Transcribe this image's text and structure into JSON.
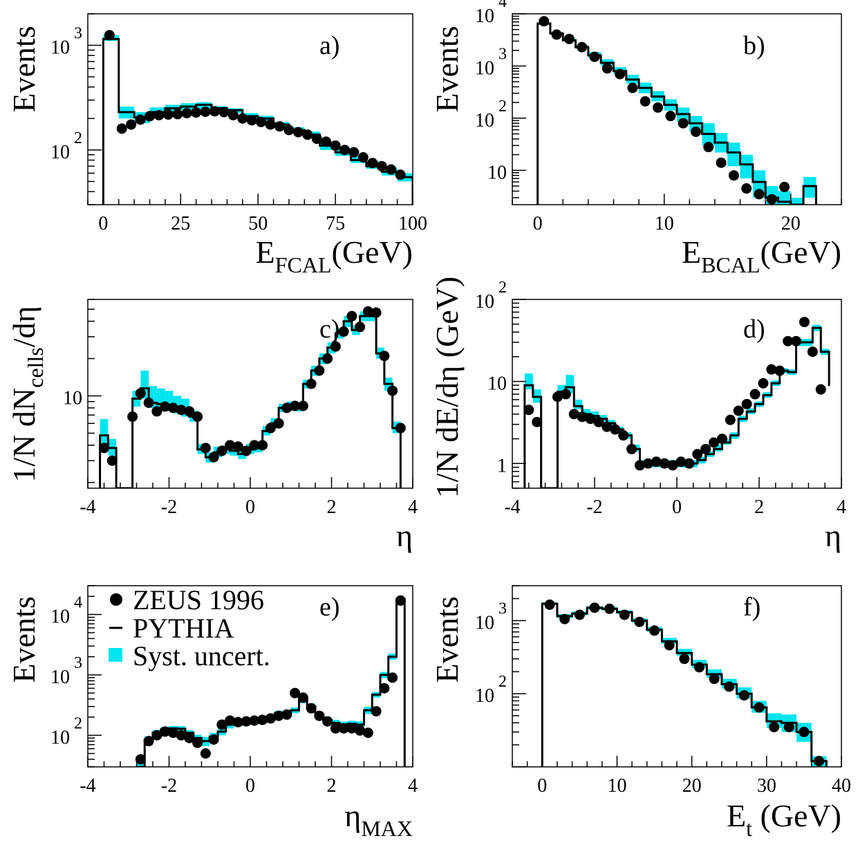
{
  "colors": {
    "band": "#00e5ee",
    "line": "#000000",
    "data": "#000000"
  },
  "chart_data": [
    {
      "type": "step",
      "label": "a)",
      "xlabel": "E",
      "xlabel_sub": "FCAL",
      "xlabel_suffix": "(GeV)",
      "ylabel": "Events",
      "xlim": [
        -5,
        100
      ],
      "ylim": [
        30,
        2000
      ],
      "ylog": true,
      "xticks": [
        0,
        25,
        50,
        75,
        100
      ],
      "yticks": [
        {
          "value": 100,
          "base": "10",
          "exp": "2"
        },
        {
          "value": 1000,
          "base": "10",
          "exp": "3"
        }
      ],
      "edges": [
        0,
        5,
        10,
        15,
        20,
        25,
        30,
        35,
        40,
        45,
        50,
        55,
        60,
        65,
        70,
        75,
        80,
        85,
        90,
        95,
        100
      ],
      "pythia": [
        1150,
        230,
        205,
        230,
        250,
        260,
        270,
        250,
        240,
        210,
        200,
        175,
        155,
        140,
        110,
        95,
        80,
        70,
        62,
        55
      ],
      "band_lo": [
        1100,
        200,
        180,
        210,
        230,
        240,
        245,
        240,
        225,
        200,
        188,
        165,
        145,
        130,
        100,
        88,
        75,
        66,
        57,
        50
      ],
      "band_hi": [
        1250,
        260,
        230,
        255,
        270,
        280,
        285,
        262,
        250,
        225,
        212,
        185,
        165,
        150,
        120,
        105,
        88,
        78,
        68,
        60
      ],
      "points_x": [
        2,
        6,
        9,
        12,
        15,
        18,
        21,
        24,
        27,
        30,
        33,
        36,
        39,
        42,
        45,
        48,
        51,
        54,
        57,
        60,
        63,
        66,
        69,
        72,
        75,
        78,
        81,
        84,
        87,
        90,
        93,
        96
      ],
      "points_y": [
        1250,
        160,
        175,
        195,
        210,
        215,
        218,
        220,
        225,
        228,
        232,
        234,
        230,
        215,
        200,
        192,
        185,
        175,
        168,
        155,
        148,
        140,
        128,
        120,
        110,
        100,
        95,
        85,
        75,
        70,
        65,
        58
      ]
    },
    {
      "type": "step",
      "label": "b)",
      "xlabel": "E",
      "xlabel_sub": "BCAL",
      "xlabel_suffix": "(GeV)",
      "ylabel": "Events",
      "xlim": [
        -2,
        24
      ],
      "ylim": [
        2.2,
        10000
      ],
      "ylog": true,
      "xticks": [
        0,
        10,
        20
      ],
      "yticks": [
        {
          "value": 10,
          "base": "10",
          "exp": ""
        },
        {
          "value": 100,
          "base": "10",
          "exp": "2"
        },
        {
          "value": 1000,
          "base": "10",
          "exp": "3"
        },
        {
          "value": 10000,
          "base": "10",
          "exp": "4"
        }
      ],
      "edges": [
        0,
        1,
        2,
        3,
        4,
        5,
        6,
        7,
        8,
        9,
        10,
        11,
        12,
        13,
        14,
        15,
        16,
        17,
        18,
        19,
        20,
        21,
        22
      ],
      "pythia": [
        6500,
        4200,
        3100,
        2300,
        1600,
        1150,
        800,
        550,
        380,
        260,
        180,
        120,
        80,
        50,
        34,
        22,
        13,
        6,
        3,
        2.5,
        1.8,
        5
      ],
      "band_lo": [
        6200,
        4000,
        2950,
        2150,
        1450,
        1000,
        700,
        460,
        300,
        210,
        140,
        85,
        55,
        30,
        22,
        12,
        7,
        3,
        1.5,
        1,
        1,
        3
      ],
      "band_hi": [
        6900,
        4500,
        3350,
        2500,
        1850,
        1350,
        950,
        680,
        480,
        330,
        230,
        160,
        110,
        80,
        52,
        34,
        20,
        10,
        5,
        4,
        3,
        7.5
      ],
      "points_x": [
        0.5,
        1.5,
        2.5,
        3.5,
        4.5,
        5.5,
        6.5,
        7.5,
        8.5,
        9.5,
        10.5,
        11.5,
        12.5,
        13.5,
        14.5,
        15.5,
        16.5,
        17.5,
        18.5,
        19.5
      ],
      "points_y": [
        7200,
        4000,
        3300,
        2300,
        1500,
        900,
        700,
        380,
        210,
        160,
        110,
        80,
        55,
        28,
        14,
        8,
        4.5,
        3.5,
        2.8,
        4.8
      ]
    },
    {
      "type": "step",
      "label": "c)",
      "xlabel": "η",
      "xlabel_sub": "",
      "xlabel_suffix": "",
      "ylabel": "1/N dN",
      "ylabel_sub": "cells",
      "ylabel_suffix": "/dη",
      "xlim": [
        -4,
        4
      ],
      "ylim": [
        1.8,
        60
      ],
      "ylog": true,
      "xticks": [
        -4,
        -2,
        0,
        2,
        4
      ],
      "yticks": [
        {
          "value": 10,
          "base": "10",
          "exp": ""
        }
      ],
      "edges": [
        -3.7,
        -3.5,
        -3.3,
        -3.1,
        -3.0,
        -2.9,
        -2.7,
        -2.5,
        -2.3,
        -2.1,
        -1.9,
        -1.7,
        -1.5,
        -1.3,
        -1.1,
        -0.9,
        -0.7,
        -0.5,
        -0.3,
        -0.1,
        0.1,
        0.3,
        0.5,
        0.7,
        0.9,
        1.1,
        1.3,
        1.5,
        1.7,
        1.9,
        2.1,
        2.3,
        2.5,
        2.7,
        2.9,
        3.1,
        3.3,
        3.5,
        3.7
      ],
      "pythia": [
        4.8,
        3.8,
        0.1,
        0.1,
        0.1,
        9.5,
        11.5,
        8.8,
        8.6,
        8.4,
        7.8,
        7.5,
        6.8,
        3.7,
        3.2,
        3.5,
        3.7,
        3.6,
        3.4,
        3.7,
        3.8,
        5.2,
        6.0,
        8.0,
        8.3,
        8.2,
        12.5,
        16.0,
        20.0,
        24.5,
        32.0,
        40.0,
        34.0,
        44.0,
        44.0,
        22.0,
        12.5,
        5.5
      ],
      "band_lo": [
        4.0,
        3.3,
        0.1,
        0.1,
        0.1,
        8.2,
        9.5,
        8.0,
        7.8,
        7.6,
        7.2,
        6.8,
        6.2,
        3.4,
        2.9,
        3.2,
        3.4,
        3.3,
        3.1,
        3.4,
        3.5,
        4.8,
        5.5,
        7.4,
        7.6,
        7.5,
        11.5,
        14.5,
        18.0,
        22.0,
        29.0,
        36.0,
        31.0,
        40.0,
        40.0,
        20.0,
        11.0,
        5.0
      ],
      "band_hi": [
        6.5,
        4.5,
        0.1,
        0.1,
        0.1,
        11.0,
        16.0,
        12.0,
        11.5,
        11.0,
        10.0,
        9.5,
        7.6,
        4.1,
        3.5,
        3.9,
        4.0,
        3.9,
        3.8,
        4.1,
        4.2,
        5.7,
        6.6,
        8.6,
        9.0,
        8.9,
        13.5,
        17.5,
        22.0,
        27.0,
        35.0,
        44.0,
        37.0,
        48.0,
        48.0,
        24.5,
        14.0,
        6.2
      ],
      "points_x": [
        -3.6,
        -3.4,
        -2.9,
        -2.7,
        -2.5,
        -2.3,
        -2.1,
        -1.9,
        -1.7,
        -1.5,
        -1.3,
        -1.1,
        -0.9,
        -0.7,
        -0.5,
        -0.3,
        -0.1,
        0.1,
        0.3,
        0.5,
        0.7,
        0.9,
        1.1,
        1.3,
        1.5,
        1.7,
        1.9,
        2.1,
        2.3,
        2.5,
        2.7,
        2.9,
        3.1,
        3.3,
        3.5,
        3.7
      ],
      "points_y": [
        3.8,
        3.0,
        6.8,
        10.5,
        8.8,
        7.5,
        8.2,
        8.0,
        7.7,
        7.5,
        6.8,
        3.8,
        3.2,
        3.6,
        4.0,
        3.9,
        3.6,
        4.0,
        4.0,
        5.5,
        6.0,
        8.0,
        8.3,
        8.3,
        12.5,
        16.0,
        20.0,
        25.0,
        33.0,
        44.0,
        36.0,
        48.0,
        47.0,
        21.0,
        11.0,
        5.5
      ]
    },
    {
      "type": "step",
      "label": "d)",
      "xlabel": "η",
      "xlabel_sub": "",
      "xlabel_suffix": "",
      "ylabel": "1/N dE/dη (GeV)",
      "ylabel_sub": "",
      "ylabel_suffix": "",
      "xlim": [
        -4,
        4
      ],
      "ylim": [
        0.5,
        100
      ],
      "ylog": true,
      "xticks": [
        -4,
        -2,
        0,
        2,
        4
      ],
      "yticks": [
        {
          "value": 1,
          "base": "1",
          "exp": ""
        },
        {
          "value": 10,
          "base": "10",
          "exp": ""
        },
        {
          "value": 100,
          "base": "10",
          "exp": "2"
        }
      ],
      "edges": [
        -3.7,
        -3.5,
        -3.3,
        -3.1,
        -3.0,
        -2.9,
        -2.7,
        -2.5,
        -2.3,
        -2.1,
        -1.9,
        -1.7,
        -1.5,
        -1.3,
        -1.1,
        -0.9,
        -0.7,
        -0.5,
        -0.3,
        -0.1,
        0.1,
        0.3,
        0.5,
        0.7,
        0.9,
        1.1,
        1.3,
        1.5,
        1.7,
        1.9,
        2.1,
        2.3,
        2.5,
        2.7,
        2.9,
        3.1,
        3.3,
        3.5,
        3.7
      ],
      "pythia": [
        9.0,
        6.5,
        0.1,
        0.1,
        0.1,
        7.5,
        8.5,
        5.0,
        4.0,
        3.8,
        3.5,
        3.1,
        2.6,
        2.2,
        1.5,
        1.0,
        1.0,
        1.0,
        1.0,
        1.0,
        1.0,
        1.0,
        1.1,
        1.3,
        1.5,
        1.8,
        2.2,
        3.5,
        4.3,
        5.3,
        6.8,
        9.5,
        13.5,
        13.0,
        30.0,
        30.0,
        45.0,
        23.0,
        8.8
      ],
      "band_lo": [
        8.0,
        5.5,
        0.1,
        0.1,
        0.1,
        6.5,
        7.2,
        4.6,
        3.6,
        3.4,
        3.2,
        2.9,
        2.4,
        2.0,
        1.4,
        0.9,
        0.9,
        0.9,
        0.9,
        0.9,
        0.9,
        0.9,
        1.0,
        1.2,
        1.4,
        1.7,
        2.0,
        3.2,
        4.0,
        4.9,
        6.3,
        8.8,
        12.5,
        12.0,
        27.0,
        27.0,
        41.0,
        21.0,
        8.0
      ],
      "band_hi": [
        12.5,
        8.0,
        0.1,
        0.1,
        0.1,
        9.0,
        12.0,
        6.0,
        4.6,
        4.3,
        3.9,
        3.4,
        2.8,
        2.4,
        1.7,
        1.1,
        1.1,
        1.1,
        1.1,
        1.1,
        1.1,
        1.1,
        1.2,
        1.4,
        1.7,
        2.0,
        2.4,
        3.8,
        4.7,
        5.7,
        7.4,
        10.3,
        14.5,
        14.0,
        33.0,
        33.0,
        49.0,
        25.0,
        9.6
      ],
      "points_x": [
        -3.6,
        -3.4,
        -2.9,
        -2.7,
        -2.5,
        -2.3,
        -2.1,
        -1.9,
        -1.7,
        -1.5,
        -1.3,
        -1.1,
        -0.9,
        -0.7,
        -0.5,
        -0.3,
        -0.1,
        0.1,
        0.3,
        0.5,
        0.7,
        0.9,
        1.1,
        1.3,
        1.5,
        1.7,
        1.9,
        2.1,
        2.3,
        2.5,
        2.7,
        2.9,
        3.1,
        3.3,
        3.5,
        3.7
      ],
      "points_y": [
        4.5,
        3.2,
        6.5,
        7.0,
        4.0,
        3.7,
        3.5,
        3.2,
        2.8,
        2.6,
        2.2,
        1.5,
        0.95,
        1.0,
        1.05,
        1.0,
        0.95,
        1.05,
        1.0,
        1.3,
        1.5,
        1.8,
        2.0,
        3.4,
        4.4,
        5.3,
        7.0,
        9.5,
        14.0,
        13.5,
        31.0,
        31.0,
        53.0,
        23.0,
        8.0
      ]
    },
    {
      "type": "step",
      "label": "e)",
      "xlabel": "η",
      "xlabel_sub": "MAX",
      "xlabel_suffix": "",
      "ylabel": "Events",
      "xlim": [
        -4,
        4
      ],
      "ylim": [
        30,
        30000
      ],
      "ylog": true,
      "xticks": [
        -4,
        -2,
        0,
        2,
        4
      ],
      "yticks": [
        {
          "value": 100,
          "base": "10",
          "exp": "2"
        },
        {
          "value": 1000,
          "base": "10",
          "exp": "3"
        },
        {
          "value": 10000,
          "base": "10",
          "exp": "4"
        }
      ],
      "edges": [
        -2.8,
        -2.6,
        -2.4,
        -2.2,
        -2.0,
        -1.8,
        -1.6,
        -1.4,
        -1.2,
        -1.0,
        -0.8,
        -0.6,
        -0.4,
        -0.2,
        0.0,
        0.2,
        0.4,
        0.6,
        0.8,
        1.0,
        1.2,
        1.4,
        1.6,
        1.8,
        2.0,
        2.2,
        2.4,
        2.6,
        2.8,
        3.0,
        3.2,
        3.4,
        3.6,
        3.8
      ],
      "pythia": [
        30,
        85,
        110,
        125,
        130,
        128,
        110,
        90,
        80,
        95,
        115,
        150,
        160,
        165,
        170,
        175,
        195,
        230,
        230,
        260,
        380,
        300,
        220,
        180,
        160,
        150,
        155,
        150,
        260,
        470,
        1000,
        2000,
        18000
      ],
      "band_lo": [
        25,
        75,
        98,
        112,
        117,
        115,
        98,
        78,
        66,
        80,
        100,
        130,
        140,
        145,
        150,
        155,
        173,
        205,
        205,
        232,
        340,
        265,
        195,
        158,
        140,
        132,
        136,
        130,
        225,
        420,
        880,
        1780,
        16500
      ],
      "band_hi": [
        36,
        96,
        122,
        138,
        143,
        141,
        122,
        102,
        94,
        110,
        130,
        170,
        180,
        185,
        190,
        195,
        218,
        255,
        255,
        290,
        420,
        335,
        245,
        202,
        180,
        168,
        174,
        170,
        295,
        520,
        1120,
        2250,
        19500
      ],
      "points_x": [
        -2.7,
        -2.5,
        -2.3,
        -2.1,
        -1.9,
        -1.7,
        -1.5,
        -1.3,
        -1.1,
        -0.9,
        -0.7,
        -0.5,
        -0.3,
        -0.1,
        0.1,
        0.3,
        0.5,
        0.7,
        0.9,
        1.1,
        1.3,
        1.5,
        1.7,
        1.9,
        2.1,
        2.3,
        2.5,
        2.7,
        2.9,
        3.1,
        3.3,
        3.5,
        3.7
      ],
      "points_y": [
        40,
        80,
        100,
        115,
        110,
        100,
        90,
        75,
        50,
        85,
        150,
        175,
        165,
        170,
        175,
        180,
        190,
        210,
        220,
        500,
        420,
        280,
        210,
        170,
        130,
        130,
        130,
        120,
        110,
        250,
        600,
        900,
        17000
      ]
    },
    {
      "type": "step",
      "label": "f)",
      "xlabel": "E",
      "xlabel_sub": "t",
      "xlabel_suffix": " (GeV)",
      "ylabel": "Events",
      "xlim": [
        -4,
        40
      ],
      "ylim": [
        10,
        3000
      ],
      "ylog": true,
      "xticks": [
        0,
        10,
        20,
        30,
        40
      ],
      "yticks": [
        {
          "value": 100,
          "base": "10",
          "exp": "2"
        },
        {
          "value": 1000,
          "base": "10",
          "exp": "3"
        }
      ],
      "edges": [
        0,
        2,
        4,
        6,
        8,
        10,
        12,
        14,
        16,
        18,
        20,
        22,
        24,
        26,
        28,
        30,
        32,
        34,
        36,
        38
      ],
      "pythia": [
        1700,
        1150,
        1250,
        1500,
        1450,
        1300,
        1000,
        750,
        520,
        360,
        250,
        185,
        135,
        100,
        65,
        42,
        40,
        30,
        12
      ],
      "band_lo": [
        1650,
        1080,
        1180,
        1420,
        1380,
        1230,
        940,
        700,
        480,
        330,
        225,
        165,
        118,
        86,
        55,
        34,
        30,
        22,
        10
      ],
      "band_hi": [
        1780,
        1230,
        1330,
        1580,
        1530,
        1380,
        1070,
        820,
        580,
        410,
        290,
        215,
        160,
        122,
        80,
        54,
        52,
        40,
        14
      ],
      "points_x": [
        1,
        3,
        5,
        7,
        9,
        11,
        13,
        15,
        17,
        19,
        21,
        23,
        25,
        27,
        29,
        31,
        33,
        35,
        37
      ],
      "points_y": [
        1650,
        1050,
        1200,
        1500,
        1450,
        1200,
        960,
        730,
        460,
        300,
        230,
        160,
        125,
        95,
        65,
        35,
        35,
        30,
        12
      ]
    }
  ],
  "legend": [
    {
      "marker": "dot",
      "label": "ZEUS 1996"
    },
    {
      "marker": "line",
      "label": "PYTHIA"
    },
    {
      "marker": "box",
      "label": "Syst. uncert."
    }
  ]
}
